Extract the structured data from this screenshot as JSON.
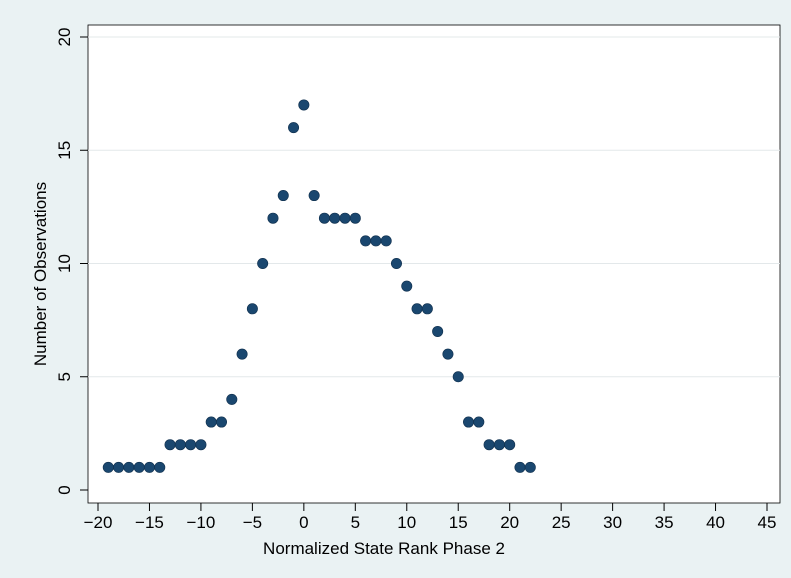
{
  "chart_data": {
    "type": "scatter",
    "title": "",
    "xlabel": "Normalized State Rank Phase 2",
    "ylabel": "Number of Observations",
    "xlim": [
      -20,
      46
    ],
    "ylim": [
      0,
      20
    ],
    "xticks": [
      -20,
      -15,
      -10,
      -5,
      0,
      5,
      10,
      15,
      20,
      25,
      30,
      35,
      40,
      45
    ],
    "yticks": [
      0,
      5,
      10,
      15,
      20
    ],
    "xtick_labels": [
      "−20",
      "−15",
      "−10",
      "−5",
      "0",
      "5",
      "10",
      "15",
      "20",
      "25",
      "30",
      "35",
      "40",
      "45"
    ],
    "ytick_labels": [
      "0",
      "5",
      "10",
      "15",
      "20"
    ],
    "grid": "horizontal",
    "legend": "none",
    "background_color": "#eaf2f3",
    "plot_color": "#ffffff",
    "marker_color": "#1a476f",
    "points": [
      {
        "x": -19,
        "y": 1
      },
      {
        "x": -18,
        "y": 1
      },
      {
        "x": -17,
        "y": 1
      },
      {
        "x": -16,
        "y": 1
      },
      {
        "x": -15,
        "y": 1
      },
      {
        "x": -14,
        "y": 1
      },
      {
        "x": -13,
        "y": 2
      },
      {
        "x": -12,
        "y": 2
      },
      {
        "x": -11,
        "y": 2
      },
      {
        "x": -10,
        "y": 2
      },
      {
        "x": -9,
        "y": 3
      },
      {
        "x": -8,
        "y": 3
      },
      {
        "x": -7,
        "y": 4
      },
      {
        "x": -6,
        "y": 6
      },
      {
        "x": -5,
        "y": 8
      },
      {
        "x": -4,
        "y": 10
      },
      {
        "x": -3,
        "y": 12
      },
      {
        "x": -2,
        "y": 13
      },
      {
        "x": -1,
        "y": 16
      },
      {
        "x": 0,
        "y": 17
      },
      {
        "x": 1,
        "y": 13
      },
      {
        "x": 2,
        "y": 12
      },
      {
        "x": 3,
        "y": 12
      },
      {
        "x": 4,
        "y": 12
      },
      {
        "x": 5,
        "y": 12
      },
      {
        "x": 6,
        "y": 11
      },
      {
        "x": 7,
        "y": 11
      },
      {
        "x": 8,
        "y": 11
      },
      {
        "x": 9,
        "y": 10
      },
      {
        "x": 10,
        "y": 9
      },
      {
        "x": 11,
        "y": 8
      },
      {
        "x": 12,
        "y": 8
      },
      {
        "x": 13,
        "y": 7
      },
      {
        "x": 14,
        "y": 6
      },
      {
        "x": 15,
        "y": 5
      },
      {
        "x": 16,
        "y": 3
      },
      {
        "x": 17,
        "y": 3
      },
      {
        "x": 18,
        "y": 2
      },
      {
        "x": 19,
        "y": 2
      },
      {
        "x": 20,
        "y": 2
      },
      {
        "x": 21,
        "y": 1
      },
      {
        "x": 22,
        "y": 1
      }
    ]
  }
}
